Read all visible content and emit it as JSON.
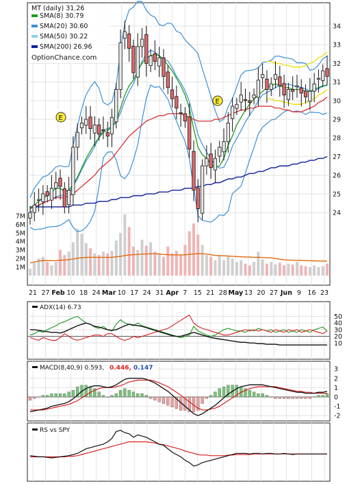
{
  "ticker_label": "MT (daily) 31.26",
  "watermark": "OptionChance.com",
  "legend": [
    {
      "label": "SMA(8) 30.79",
      "color": "#1f9a1f"
    },
    {
      "label": "SMA(20) 30.60",
      "color": "#3a8fd6"
    },
    {
      "label": "SMA(50) 30.22",
      "color": "#8ecfee"
    },
    {
      "label": "SMA(200) 26.96",
      "color": "#0f1f9a"
    }
  ],
  "earnings_label": "E",
  "colors": {
    "up_candle": "#e8e8e8",
    "down_candle": "#e06a6a",
    "candle_outline": "#111111",
    "sma8": "#1f9a1f",
    "sma20": "#3a8fd6",
    "bollinger": "#3a8fd6",
    "sma50": "#d82020",
    "sma200": "#0f1f9a",
    "envelope": "#e8e000",
    "vol_up": "#cfcfcf",
    "vol_down": "#f0b4b4",
    "vol_avg": "#e06a10",
    "adx": "#111111",
    "plus_di": "#1f9a1f",
    "minus_di": "#d82020",
    "macd": "#111111",
    "signal": "#d82020",
    "hist_up": "#7cc27c",
    "hist_down": "#e8a0a0",
    "rs": "#111111",
    "rs_ma": "#d82020",
    "earnings": "#ffee33"
  },
  "x_axis_labels": [
    "21",
    "27",
    "Feb",
    "10",
    "18",
    "24",
    "Mar",
    "10",
    "17",
    "24",
    "31",
    "Apr",
    "7",
    "15",
    "21",
    "28",
    "May",
    "13",
    "20",
    "27",
    "Jun",
    "9",
    "16",
    "23"
  ],
  "price_panel": {
    "y_ticks": [
      "34",
      "33",
      "32",
      "31",
      "30",
      "29",
      "28",
      "27",
      "26",
      "25",
      "24"
    ],
    "volume_ticks": [
      "7M",
      "6M",
      "5M",
      "4M",
      "3M",
      "2M",
      "1M"
    ]
  },
  "adx_panel": {
    "label": "ADX(14) 6.73",
    "y_ticks": [
      "50",
      "40",
      "30",
      "20",
      "10"
    ]
  },
  "macd_panel": {
    "label": "MACD(8,40,9) 0.593,",
    "signal_value": "0.446,",
    "histogram_value": "0.147",
    "y_ticks": [
      "3",
      "2",
      "1",
      "0",
      "-1",
      "-2"
    ]
  },
  "rs_panel": {
    "label": "RS vs SPY"
  },
  "chart_data": {
    "type": "candlestick",
    "title": "MT (daily) 31.26",
    "ylim": [
      23.5,
      34.5
    ],
    "closes": [
      24.0,
      24.4,
      24.7,
      25.0,
      24.9,
      25.3,
      25.6,
      25.4,
      24.3,
      25.2,
      27.5,
      28.3,
      28.8,
      29.0,
      28.5,
      28.7,
      28.2,
      28.4,
      28.1,
      29.1,
      30.6,
      33.1,
      33.7,
      32.8,
      31.5,
      32.9,
      33.3,
      32.0,
      32.4,
      32.1,
      32.3,
      31.3,
      30.7,
      30.1,
      29.6,
      29.3,
      28.9,
      27.4,
      25.2,
      24.2,
      26.5,
      26.9,
      26.4,
      26.9,
      27.5,
      27.8,
      28.8,
      29.7,
      29.8,
      30.3,
      30.0,
      29.9,
      30.3,
      31.1,
      31.4,
      30.6,
      30.9,
      31.4,
      30.8,
      30.3,
      30.6,
      30.5,
      30.8,
      30.4,
      30.2,
      30.5,
      30.9,
      31.2,
      31.6,
      31.3
    ],
    "volume_millions": [
      0.8,
      1.5,
      2.0,
      2.2,
      1.6,
      1.2,
      1.6,
      3.0,
      2.4,
      2.8,
      3.9,
      5.5,
      4.9,
      3.8,
      3.2,
      2.6,
      2.4,
      2.8,
      2.6,
      2.9,
      4.1,
      5.0,
      7.2,
      5.7,
      3.4,
      3.0,
      4.2,
      3.5,
      3.9,
      2.8,
      2.5,
      2.2,
      3.4,
      2.6,
      2.9,
      2.4,
      3.6,
      5.2,
      6.1,
      4.8,
      3.6,
      2.4,
      2.2,
      1.8,
      2.4,
      1.8,
      2.2,
      2.0,
      1.6,
      1.8,
      1.4,
      1.2,
      1.6,
      2.8,
      1.9,
      1.4,
      1.6,
      1.3,
      1.5,
      1.2,
      1.4,
      1.3,
      1.6,
      1.2,
      1.1,
      1.0,
      1.2,
      1.0,
      1.1,
      1.4
    ],
    "sma8": [
      24.2,
      24.4,
      24.6,
      24.8,
      24.9,
      25.1,
      25.3,
      25.3,
      25.1,
      25.2,
      25.5,
      25.9,
      26.4,
      26.9,
      27.3,
      27.7,
      28.0,
      28.3,
      28.4,
      28.6,
      28.9,
      29.6,
      30.3,
      30.8,
      31.1,
      31.6,
      32.0,
      32.3,
      32.4,
      32.5,
      32.4,
      32.2,
      31.9,
      31.6,
      31.2,
      30.8,
      30.3,
      29.6,
      28.5,
      27.5,
      27.1,
      26.9,
      26.6,
      26.4,
      26.5,
      26.9,
      27.6,
      28.1,
      28.7,
      29.1,
      29.5,
      29.8,
      30.1,
      30.3,
      30.5,
      30.7,
      30.8,
      30.9,
      30.8,
      30.7,
      30.7,
      30.6,
      30.6,
      30.6,
      30.5,
      30.5,
      30.6,
      30.7,
      30.8,
      30.8
    ],
    "sma50": [
      24.2,
      24.3,
      24.4,
      24.5,
      24.6,
      24.7,
      24.8,
      24.8,
      24.8,
      24.9,
      25.0,
      25.2,
      25.4,
      25.6,
      25.8,
      26.0,
      26.3,
      26.5,
      26.7,
      26.9,
      27.2,
      27.5,
      27.8,
      28.1,
      28.3,
      28.5,
      28.7,
      28.9,
      29.0,
      29.1,
      29.2,
      29.2,
      29.3,
      29.3,
      29.3,
      29.3,
      29.2,
      29.1,
      29.0,
      28.9,
      28.9,
      28.9,
      28.9,
      29.0,
      29.0,
      29.1,
      29.2,
      29.3,
      29.4,
      29.5,
      29.5,
      29.6,
      29.6,
      29.7,
      29.7,
      29.7,
      29.7,
      29.6,
      29.6,
      29.5,
      29.5,
      29.4,
      29.4,
      29.4,
      29.5,
      29.6,
      29.7,
      29.9,
      30.0,
      30.2
    ],
    "sma200": [
      24.3,
      24.3,
      24.3,
      24.3,
      24.3,
      24.3,
      24.3,
      24.3,
      24.3,
      24.3,
      24.4,
      24.4,
      24.4,
      24.5,
      24.5,
      24.5,
      24.6,
      24.6,
      24.6,
      24.7,
      24.7,
      24.8,
      24.8,
      24.8,
      24.9,
      24.9,
      24.9,
      25.0,
      25.0,
      25.0,
      25.1,
      25.1,
      25.1,
      25.2,
      25.2,
      25.2,
      25.3,
      25.3,
      25.3,
      25.4,
      25.4,
      25.5,
      25.5,
      25.6,
      25.6,
      25.7,
      25.8,
      25.8,
      25.9,
      25.9,
      26.0,
      26.1,
      26.1,
      26.2,
      26.2,
      26.3,
      26.4,
      26.4,
      26.5,
      26.5,
      26.5,
      26.6,
      26.6,
      26.7,
      26.7,
      26.8,
      26.8,
      26.9,
      26.9,
      27.0
    ],
    "adx": [
      30,
      30,
      29,
      28,
      27,
      26,
      26,
      25,
      27,
      30,
      33,
      36,
      38,
      40,
      38,
      35,
      34,
      32,
      30,
      29,
      30,
      33,
      36,
      38,
      37,
      36,
      35,
      33,
      31,
      29,
      27,
      25,
      23,
      21,
      20,
      20,
      22,
      24,
      26,
      24,
      22,
      20,
      18,
      17,
      16,
      15,
      14,
      13,
      12,
      11,
      11,
      10,
      10,
      9,
      9,
      8,
      8,
      8,
      7,
      7,
      7,
      7,
      7,
      7,
      7,
      7,
      7,
      7,
      7,
      7
    ],
    "plus_di": [
      22,
      24,
      28,
      26,
      30,
      33,
      36,
      40,
      42,
      45,
      48,
      50,
      45,
      40,
      38,
      34,
      32,
      35,
      30,
      28,
      38,
      45,
      40,
      38,
      36,
      40,
      36,
      34,
      32,
      30,
      28,
      26,
      24,
      22,
      20,
      18,
      20,
      22,
      35,
      28,
      25,
      22,
      20,
      22,
      26,
      30,
      32,
      30,
      28,
      28,
      26,
      30,
      28,
      32,
      30,
      28,
      30,
      26,
      28,
      30,
      26,
      28,
      26,
      30,
      28,
      26,
      30,
      32,
      34,
      28
    ],
    "minus_di": [
      18,
      16,
      14,
      18,
      16,
      14,
      14,
      18,
      24,
      20,
      16,
      14,
      16,
      18,
      20,
      22,
      22,
      20,
      24,
      24,
      20,
      16,
      14,
      16,
      20,
      18,
      20,
      22,
      24,
      26,
      28,
      30,
      32,
      36,
      40,
      44,
      48,
      52,
      40,
      35,
      32,
      30,
      28,
      26,
      24,
      22,
      22,
      24,
      26,
      28,
      30,
      28,
      30,
      28,
      30,
      28,
      26,
      30,
      28,
      26,
      30,
      28,
      30,
      26,
      28,
      30,
      28,
      26,
      24,
      28
    ],
    "macd": [
      -1.6,
      -1.5,
      -1.4,
      -1.3,
      -1.2,
      -1.0,
      -0.9,
      -0.8,
      -0.7,
      -0.5,
      -0.2,
      0.2,
      0.6,
      0.9,
      1.1,
      1.2,
      1.2,
      1.1,
      1.0,
      1.1,
      1.3,
      1.6,
      1.9,
      2.0,
      2.0,
      2.0,
      2.0,
      1.9,
      1.7,
      1.5,
      1.2,
      0.9,
      0.6,
      0.2,
      -0.2,
      -0.6,
      -1.0,
      -1.4,
      -1.8,
      -2.0,
      -1.8,
      -1.5,
      -1.2,
      -0.9,
      -0.5,
      -0.1,
      0.3,
      0.6,
      0.9,
      1.1,
      1.2,
      1.3,
      1.3,
      1.3,
      1.3,
      1.2,
      1.1,
      1.0,
      0.9,
      0.8,
      0.7,
      0.6,
      0.5,
      0.5,
      0.4,
      0.4,
      0.4,
      0.5,
      0.5,
      0.6
    ],
    "macd_signal": [
      -1.4,
      -1.4,
      -1.4,
      -1.4,
      -1.3,
      -1.2,
      -1.1,
      -1.0,
      -0.9,
      -0.8,
      -0.6,
      -0.4,
      -0.1,
      0.2,
      0.5,
      0.7,
      0.9,
      1.0,
      1.0,
      1.0,
      1.1,
      1.2,
      1.4,
      1.6,
      1.7,
      1.8,
      1.8,
      1.8,
      1.8,
      1.7,
      1.5,
      1.3,
      1.1,
      0.8,
      0.5,
      0.2,
      -0.2,
      -0.5,
      -0.9,
      -1.2,
      -1.4,
      -1.4,
      -1.3,
      -1.2,
      -1.0,
      -0.7,
      -0.4,
      -0.1,
      0.2,
      0.5,
      0.7,
      0.9,
      1.0,
      1.1,
      1.1,
      1.1,
      1.1,
      1.1,
      1.0,
      0.9,
      0.8,
      0.7,
      0.6,
      0.6,
      0.5,
      0.5,
      0.4,
      0.4,
      0.4,
      0.4
    ],
    "rs": [
      48,
      47,
      46,
      46,
      45,
      44,
      45,
      46,
      47,
      48,
      50,
      52,
      56,
      60,
      62,
      64,
      66,
      68,
      72,
      78,
      90,
      92,
      88,
      86,
      80,
      84,
      82,
      80,
      76,
      72,
      68,
      66,
      60,
      54,
      50,
      46,
      40,
      36,
      30,
      32,
      36,
      38,
      40,
      42,
      44,
      46,
      48,
      50,
      52,
      52,
      52,
      51,
      52,
      52,
      51,
      52,
      52,
      51,
      51,
      52,
      51,
      50,
      51,
      51,
      51,
      51,
      51,
      51,
      51,
      51
    ],
    "rs_ma": [
      46,
      46,
      46,
      46,
      46,
      46,
      46,
      46,
      46,
      47,
      47,
      48,
      50,
      52,
      54,
      56,
      58,
      60,
      62,
      64,
      66,
      68,
      70,
      72,
      72,
      72,
      72,
      72,
      71,
      70,
      68,
      67,
      65,
      63,
      61,
      59,
      56,
      54,
      52,
      50,
      49,
      49,
      48,
      48,
      48,
      48,
      49,
      49,
      50,
      50,
      50,
      50,
      51,
      51,
      51,
      51,
      51,
      51,
      51,
      51,
      51,
      51,
      51,
      51,
      51,
      51,
      51,
      51,
      51,
      51
    ]
  }
}
